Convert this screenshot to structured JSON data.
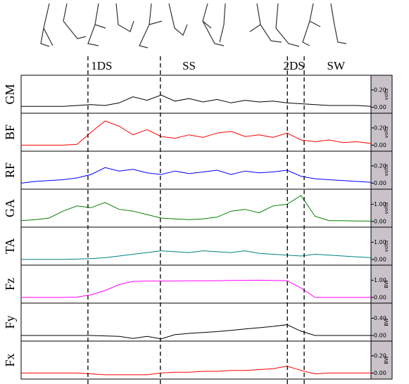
{
  "phases": {
    "labels": [
      "1DS",
      "SS",
      "2DS",
      "SW"
    ],
    "label_x": [
      23,
      48,
      78,
      90
    ],
    "boundaries": [
      19.1,
      39.8,
      76.1,
      80.9
    ]
  },
  "chart_data": [
    {
      "type": "line",
      "ylabel": "GM",
      "units": "volts",
      "color": "#000000",
      "xlim": [
        0,
        100
      ],
      "ylim": [
        -0.07,
        0.37
      ],
      "yticks": [
        {
          "value": 0,
          "label": "0.00"
        },
        {
          "value": 0.2,
          "label": "0.20"
        }
      ],
      "x": [
        0,
        4,
        8,
        12,
        16,
        20,
        24,
        28,
        32,
        36,
        40,
        44,
        48,
        52,
        56,
        60,
        64,
        68,
        72,
        76,
        80,
        84,
        88,
        92,
        96,
        100
      ],
      "values": [
        0.01,
        0.01,
        0.01,
        0.01,
        0.02,
        0.03,
        0.02,
        0.05,
        0.12,
        0.08,
        0.14,
        0.07,
        0.1,
        0.06,
        0.09,
        0.05,
        0.08,
        0.06,
        0.07,
        0.05,
        0.04,
        0.03,
        0.02,
        0.02,
        0.02,
        0.01
      ]
    },
    {
      "type": "line",
      "ylabel": "BF",
      "units": "volts",
      "color": "#ff0000",
      "xlim": [
        0,
        100
      ],
      "ylim": [
        -0.07,
        0.37
      ],
      "yticks": [
        {
          "value": 0,
          "label": "0.00"
        },
        {
          "value": 0.2,
          "label": "0.20"
        }
      ],
      "x": [
        0,
        4,
        8,
        12,
        16,
        20,
        24,
        28,
        32,
        36,
        40,
        44,
        48,
        52,
        56,
        60,
        64,
        68,
        72,
        76,
        80,
        84,
        88,
        92,
        96,
        100
      ],
      "values": [
        0.0,
        0.0,
        0.0,
        0.0,
        0.01,
        0.15,
        0.28,
        0.22,
        0.12,
        0.18,
        0.1,
        0.08,
        0.12,
        0.09,
        0.14,
        0.16,
        0.1,
        0.12,
        0.09,
        0.14,
        0.06,
        0.04,
        0.06,
        0.03,
        0.04,
        0.02
      ]
    },
    {
      "type": "line",
      "ylabel": "RF",
      "units": "volts",
      "color": "#0000ff",
      "xlim": [
        0,
        100
      ],
      "ylim": [
        -0.07,
        0.37
      ],
      "yticks": [
        {
          "value": 0,
          "label": "0.00"
        },
        {
          "value": 0.2,
          "label": "0.20"
        }
      ],
      "x": [
        0,
        4,
        8,
        12,
        16,
        20,
        24,
        28,
        32,
        36,
        40,
        44,
        48,
        52,
        56,
        60,
        64,
        68,
        72,
        76,
        80,
        84,
        88,
        92,
        96,
        100
      ],
      "values": [
        0.0,
        0.02,
        0.03,
        0.04,
        0.06,
        0.1,
        0.18,
        0.14,
        0.16,
        0.12,
        0.1,
        0.14,
        0.11,
        0.13,
        0.15,
        0.1,
        0.14,
        0.12,
        0.13,
        0.15,
        0.08,
        0.05,
        0.04,
        0.03,
        0.02,
        0.01
      ]
    },
    {
      "type": "line",
      "ylabel": "GA",
      "units": "volts",
      "color": "#008000",
      "xlim": [
        0,
        100
      ],
      "ylim": [
        -0.33,
        1.87
      ],
      "yticks": [
        {
          "value": 0,
          "label": "0.00"
        },
        {
          "value": 1,
          "label": "1.00"
        }
      ],
      "x": [
        0,
        4,
        8,
        12,
        16,
        20,
        24,
        28,
        32,
        36,
        40,
        44,
        48,
        52,
        56,
        60,
        64,
        68,
        72,
        76,
        80,
        84,
        88,
        92,
        96,
        100
      ],
      "values": [
        0.05,
        0.1,
        0.2,
        0.6,
        0.9,
        0.8,
        1.1,
        0.7,
        0.6,
        0.4,
        0.2,
        0.15,
        0.1,
        0.15,
        0.25,
        0.6,
        0.7,
        0.5,
        0.9,
        1.0,
        1.5,
        0.3,
        0.05,
        0.05,
        0.03,
        0.02
      ]
    },
    {
      "type": "line",
      "ylabel": "TA",
      "units": "volts",
      "color": "#008080",
      "xlim": [
        0,
        100
      ],
      "ylim": [
        -0.33,
        1.87
      ],
      "yticks": [
        {
          "value": 0,
          "label": "0.00"
        },
        {
          "value": 1,
          "label": "1.00"
        }
      ],
      "x": [
        0,
        4,
        8,
        12,
        16,
        20,
        24,
        28,
        32,
        36,
        40,
        44,
        48,
        52,
        56,
        60,
        64,
        68,
        72,
        76,
        80,
        84,
        88,
        92,
        96,
        100
      ],
      "values": [
        0.0,
        0.0,
        0.0,
        0.0,
        0.02,
        0.05,
        0.1,
        0.2,
        0.3,
        0.4,
        0.5,
        0.45,
        0.4,
        0.5,
        0.45,
        0.4,
        0.5,
        0.35,
        0.3,
        0.25,
        0.2,
        0.3,
        0.25,
        0.2,
        0.15,
        0.1
      ]
    },
    {
      "type": "line",
      "ylabel": "Fz",
      "units": "BW",
      "color": "#ff00ff",
      "xlim": [
        0,
        100
      ],
      "ylim": [
        -0.33,
        1.87
      ],
      "yticks": [
        {
          "value": 0,
          "label": "0.00"
        },
        {
          "value": 1,
          "label": "1.00"
        }
      ],
      "x": [
        0,
        4,
        8,
        12,
        16,
        20,
        24,
        28,
        32,
        36,
        40,
        44,
        48,
        52,
        56,
        60,
        64,
        68,
        72,
        76,
        80,
        84,
        88,
        92,
        96,
        100
      ],
      "values": [
        0,
        0,
        0,
        0,
        0.02,
        0.15,
        0.4,
        0.75,
        0.93,
        0.95,
        0.95,
        0.95,
        0.96,
        0.96,
        0.97,
        0.98,
        0.99,
        1.0,
        0.98,
        0.97,
        0.55,
        0,
        0,
        0,
        0,
        0
      ]
    },
    {
      "type": "line",
      "ylabel": "Fy",
      "units": "BW",
      "color": "#000000",
      "xlim": [
        0,
        100
      ],
      "ylim": [
        -0.13,
        0.75
      ],
      "yticks": [
        {
          "value": 0,
          "label": "0.00"
        },
        {
          "value": 0.4,
          "label": "0.40"
        }
      ],
      "x": [
        0,
        4,
        8,
        12,
        16,
        20,
        24,
        28,
        32,
        36,
        40,
        44,
        48,
        52,
        56,
        60,
        64,
        68,
        72,
        76,
        80,
        84,
        88,
        92,
        96,
        100
      ],
      "values": [
        0,
        0,
        0,
        0,
        0,
        0,
        -0.01,
        -0.02,
        -0.07,
        -0.02,
        -0.08,
        0.02,
        0.05,
        0.07,
        0.09,
        0.12,
        0.15,
        0.18,
        0.21,
        0.25,
        0.1,
        0,
        0,
        0,
        0,
        0
      ]
    },
    {
      "type": "line",
      "ylabel": "Fx",
      "units": "BW",
      "color": "#ff0000",
      "xlim": [
        0,
        100
      ],
      "ylim": [
        -0.07,
        0.37
      ],
      "yticks": [
        {
          "value": 0,
          "label": "0.00"
        },
        {
          "value": 0.2,
          "label": "0.20"
        }
      ],
      "x": [
        0,
        4,
        8,
        12,
        16,
        20,
        24,
        28,
        32,
        36,
        40,
        44,
        48,
        52,
        56,
        60,
        64,
        68,
        72,
        76,
        80,
        84,
        88,
        92,
        96,
        100
      ],
      "values": [
        0,
        0,
        0,
        0,
        0,
        -0.01,
        -0.02,
        -0.02,
        -0.02,
        -0.02,
        0,
        0.01,
        0.01,
        0.02,
        0.02,
        0.03,
        0.03,
        0.04,
        0.05,
        0.08,
        0.03,
        -0.01,
        0,
        0,
        0,
        0
      ]
    }
  ]
}
